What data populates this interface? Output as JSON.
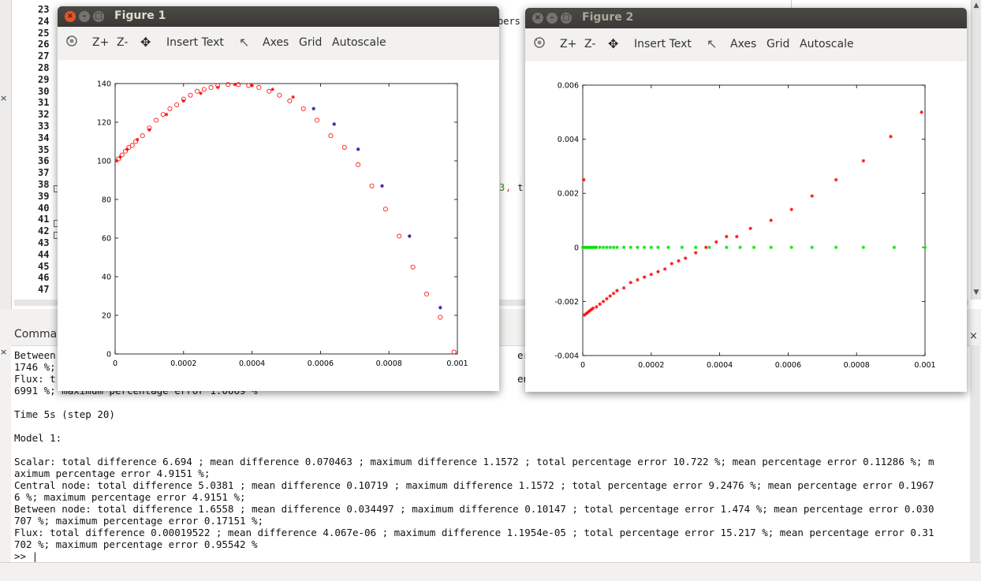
{
  "editor": {
    "line_numbers": [
      "23",
      "24",
      "25",
      "26",
      "27",
      "28",
      "29",
      "30",
      "31",
      "32",
      "33",
      "34",
      "35",
      "36",
      "37",
      "38",
      "39",
      "40",
      "41",
      "42",
      "43",
      "44",
      "45",
      "46",
      "47"
    ],
    "fragments": {
      "line24_tail": "bers",
      "line38_num": "3",
      "line38_comma": ",",
      "line38_tail": " t"
    },
    "left_marks": {
      "close_top": "×",
      "close_bottom": "×"
    }
  },
  "command_window": {
    "title": "Comma",
    "close_label": "×",
    "partial_left": [
      "Between",
      "1746 %;",
      "Flux: t",
      "6991 %; maximum percentage error 1.0669 %"
    ],
    "partial_right": [
      "eren",
      "ence"
    ],
    "lines": [
      "Time 5s (step 20)",
      "",
      "Model 1:",
      "",
      "Scalar: total difference 6.694 ; mean difference 0.070463 ; maximum difference 1.1572 ; total percentage error 10.722 %; mean percentage error 0.11286 %; m",
      "aximum percentage error 4.9151 %;",
      "Central node: total difference 5.0381 ; mean difference 0.10719 ; maximum difference 1.1572 ; total percentage error 9.2476 %; mean percentage error 0.1967",
      "6 %; maximum percentage error 4.9151 %;",
      "Between node: total difference 1.6558 ; mean difference 0.034497 ; maximum difference 0.10147 ; total percentage error 1.474 %; mean percentage error 0.030",
      "707 %; maximum percentage error 0.17151 %;",
      "Flux: total difference 0.00019522 ; mean difference 4.067e-06 ; maximum difference 1.1954e-05 ; total percentage error 15.217 %; mean percentage error 0.31",
      "702 %; maximum percentage error 0.95542 %",
      ">> |"
    ]
  },
  "figures": [
    {
      "title": "Figure 1",
      "buttons": {
        "close": "×",
        "minimize": "–",
        "maximize": "□"
      },
      "toolbar": {
        "rotate_icon": "rotate-icon",
        "zoom_in": "Z+",
        "zoom_out": "Z-",
        "pan_icon": "✥",
        "insert_text": "Insert Text",
        "pointer_icon": "↖",
        "axes": "Axes",
        "grid": "Grid",
        "autoscale": "Autoscale"
      }
    },
    {
      "title": "Figure 2",
      "buttons": {
        "close": "×",
        "minimize": "–",
        "maximize": "□"
      },
      "toolbar": {
        "rotate_icon": "rotate-icon",
        "zoom_in": "Z+",
        "zoom_out": "Z-",
        "pan_icon": "✥",
        "insert_text": "Insert Text",
        "pointer_icon": "↖",
        "axes": "Axes",
        "grid": "Grid",
        "autoscale": "Autoscale"
      }
    }
  ],
  "colors": {
    "circle_series": "#ff0000",
    "star_series": "#ff0000",
    "blue_star": "#2020d0",
    "green_series": "#00dd00"
  },
  "chart_data": [
    {
      "type": "scatter",
      "xlim": [
        0,
        0.001
      ],
      "ylim": [
        0,
        140
      ],
      "xticks": [
        0,
        0.0002,
        0.0004,
        0.0006,
        0.0008,
        0.001
      ],
      "xtick_labels": [
        "0",
        "0.0002",
        "0.0004",
        "0.0006",
        "0.0008",
        "0.001"
      ],
      "yticks": [
        0,
        20,
        40,
        60,
        80,
        100,
        120,
        140
      ],
      "ytick_labels": [
        "0",
        "20",
        "40",
        "60",
        "80",
        "100",
        "120",
        "140"
      ],
      "grid": false,
      "series": [
        {
          "marker": "circle",
          "color": "#ff0000",
          "x": [
            1e-05,
            2e-05,
            3e-05,
            4e-05,
            5e-05,
            6e-05,
            8e-05,
            0.0001,
            0.00012,
            0.00014,
            0.00016,
            0.00018,
            0.0002,
            0.00022,
            0.00024,
            0.00026,
            0.00028,
            0.0003,
            0.00033,
            0.00036,
            0.00039,
            0.00042,
            0.00045,
            0.00048,
            0.00051,
            0.00055,
            0.00059,
            0.00063,
            0.00067,
            0.00071,
            0.00075,
            0.00079,
            0.00083,
            0.00087,
            0.00091,
            0.00095,
            0.00099
          ],
          "y": [
            101,
            103,
            105,
            107,
            108,
            110,
            113,
            117,
            121,
            124,
            127,
            129,
            132,
            134,
            136,
            137,
            138,
            139,
            139.5,
            139.5,
            139,
            138,
            136,
            134,
            131,
            127,
            121,
            113,
            107,
            98,
            87,
            75,
            61,
            45,
            31,
            19,
            1
          ]
        },
        {
          "marker": "star",
          "color": "#ff0000",
          "x": [
            5e-06,
            1.5e-05,
            3.5e-05,
            6.5e-05,
            0.0001,
            0.00015,
            0.0002,
            0.00025,
            0.0003,
            0.00035,
            0.0004,
            0.00046,
            0.00052,
            0.00058,
            0.00064,
            0.00071,
            0.00078,
            0.00086,
            0.00095
          ],
          "y": [
            100,
            102,
            106,
            111,
            116,
            124,
            131,
            135,
            138,
            139.5,
            139,
            137,
            133,
            127,
            119,
            106,
            87,
            61,
            24
          ]
        },
        {
          "marker": "star",
          "color": "#2020d0",
          "x": [
            0.00058,
            0.00064,
            0.00071,
            0.00078,
            0.00086,
            0.00095
          ],
          "y": [
            127,
            119,
            106,
            87,
            61,
            24
          ]
        }
      ]
    },
    {
      "type": "scatter",
      "xlim": [
        0,
        0.001
      ],
      "ylim": [
        -0.004,
        0.006
      ],
      "xticks": [
        0,
        0.0002,
        0.0004,
        0.0006,
        0.0008,
        0.001
      ],
      "xtick_labels": [
        "0",
        "0.0002",
        "0.0004",
        "0.0006",
        "0.0008",
        "0.001"
      ],
      "yticks": [
        -0.004,
        -0.002,
        0,
        0.002,
        0.004,
        0.006
      ],
      "ytick_labels": [
        "-0.004",
        "-0.002",
        "0",
        "0.002",
        "0.004",
        "0.006"
      ],
      "grid": false,
      "series": [
        {
          "marker": "star",
          "color": "#ff0000",
          "x": [
            3e-06,
            5e-06,
            1e-05,
            1.5e-05,
            2e-05,
            2.5e-05,
            3e-05,
            4e-05,
            5e-05,
            6e-05,
            7e-05,
            8e-05,
            9e-05,
            0.0001,
            0.00012,
            0.00014,
            0.00016,
            0.00018,
            0.0002,
            0.00022,
            0.00024,
            0.00026,
            0.00028,
            0.0003,
            0.00033,
            0.00036,
            0.00039,
            0.00042,
            0.00045,
            0.00049,
            0.00055,
            0.00061,
            0.00067,
            0.00074,
            0.00082,
            0.0009,
            0.00099
          ],
          "y": [
            0.0025,
            -0.0025,
            -0.00245,
            -0.0024,
            -0.00235,
            -0.0023,
            -0.00225,
            -0.0022,
            -0.0021,
            -0.002,
            -0.0019,
            -0.0018,
            -0.0017,
            -0.0016,
            -0.0015,
            -0.0013,
            -0.0012,
            -0.0011,
            -0.001,
            -0.0009,
            -0.0008,
            -0.0006,
            -0.0005,
            -0.0004,
            -0.0002,
            0,
            0.0002,
            0.0004,
            0.0004,
            0.0007,
            0.001,
            0.0014,
            0.0019,
            0.0025,
            0.0032,
            0.0041,
            0.005
          ]
        },
        {
          "marker": "star",
          "color": "#00dd00",
          "x": [
            0,
            5e-06,
            1e-05,
            1.5e-05,
            2e-05,
            2.5e-05,
            3e-05,
            3.5e-05,
            4e-05,
            5e-05,
            6e-05,
            7e-05,
            8e-05,
            9e-05,
            0.0001,
            0.00012,
            0.00014,
            0.00016,
            0.00018,
            0.0002,
            0.00022,
            0.00025,
            0.00029,
            0.00033,
            0.00037,
            0.00042,
            0.00046,
            0.0005,
            0.00055,
            0.00061,
            0.00067,
            0.00074,
            0.00082,
            0.00091,
            0.001
          ],
          "y": [
            0,
            0,
            0,
            0,
            0,
            0,
            0,
            0,
            0,
            0,
            0,
            0,
            0,
            0,
            0,
            0,
            0,
            0,
            0,
            0,
            0,
            0,
            0,
            0,
            0,
            0,
            0,
            0,
            0,
            0,
            0,
            0,
            0,
            0,
            0
          ]
        }
      ]
    }
  ]
}
